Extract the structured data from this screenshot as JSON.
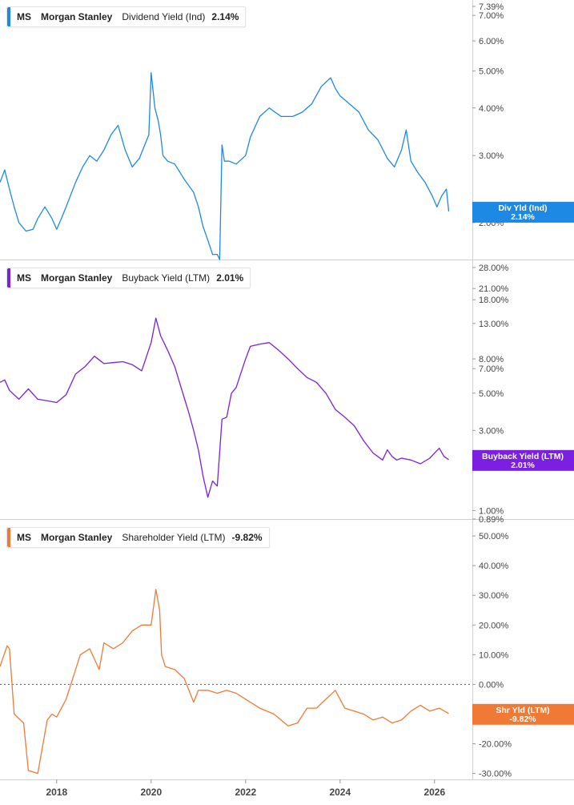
{
  "x_axis": {
    "ticks": [
      "2018",
      "2020",
      "2022",
      "2024",
      "2026"
    ]
  },
  "panels": [
    {
      "id": "div",
      "color": "#1e88e5",
      "legend": {
        "ticker": "MS",
        "company": "Morgan Stanley",
        "metric": "Dividend Yield (Ind)",
        "value": "2.14%"
      },
      "tag": {
        "label": "Div Yld (Ind)",
        "value": "2.14%"
      },
      "scale": "log",
      "y_ticks": [
        "7.39%",
        "7.00%",
        "6.00%",
        "5.00%",
        "4.00%",
        "3.00%",
        "2.00%"
      ]
    },
    {
      "id": "buy",
      "color": "#7b1fe0",
      "legend": {
        "ticker": "MS",
        "company": "Morgan Stanley",
        "metric": "Buyback Yield (LTM)",
        "value": "2.01%"
      },
      "tag": {
        "label": "Buyback Yield (LTM)",
        "value": "2.01%"
      },
      "scale": "log",
      "y_ticks": [
        "28.00%",
        "21.00%",
        "18.00%",
        "13.00%",
        "8.00%",
        "7.00%",
        "5.00%",
        "3.00%",
        "1.00%",
        "0.89%"
      ]
    },
    {
      "id": "shr",
      "color": "#f07a35",
      "legend": {
        "ticker": "MS",
        "company": "Morgan Stanley",
        "metric": "Shareholder Yield (LTM)",
        "value": "-9.82%"
      },
      "tag": {
        "label": "Shr Yld (LTM)",
        "value": "-9.82%"
      },
      "scale": "linear",
      "y_ticks": [
        "50.00%",
        "40.00%",
        "30.00%",
        "20.00%",
        "10.00%",
        "0.00%",
        "-10.00%",
        "-20.00%",
        "-30.00%"
      ],
      "zero_line": true
    }
  ],
  "chart_data": [
    {
      "type": "line",
      "series": [
        {
          "name": "Dividend Yield (Ind)",
          "x": [
            2016.8,
            2016.9,
            2017.0,
            2017.1,
            2017.2,
            2017.35,
            2017.5,
            2017.6,
            2017.75,
            2017.9,
            2018.0,
            2018.1,
            2018.2,
            2018.4,
            2018.55,
            2018.7,
            2018.85,
            2019.0,
            2019.15,
            2019.3,
            2019.45,
            2019.6,
            2019.75,
            2019.95,
            2020.0,
            2020.08,
            2020.15,
            2020.2,
            2020.25,
            2020.35,
            2020.5,
            2020.7,
            2020.9,
            2021.0,
            2021.1,
            2021.2,
            2021.3,
            2021.4,
            2021.45,
            2021.5,
            2021.55,
            2021.65,
            2021.8,
            2022.0,
            2022.1,
            2022.3,
            2022.5,
            2022.75,
            2023.0,
            2023.2,
            2023.4,
            2023.6,
            2023.8,
            2023.9,
            2024.0,
            2024.2,
            2024.4,
            2024.6,
            2024.8,
            2025.0,
            2025.15,
            2025.3,
            2025.4,
            2025.5,
            2025.65,
            2025.8,
            2025.95,
            2026.05,
            2026.15,
            2026.25,
            2026.3
          ],
          "values": [
            2.55,
            2.75,
            2.45,
            2.2,
            2.0,
            1.9,
            1.92,
            2.05,
            2.2,
            2.05,
            1.92,
            2.05,
            2.2,
            2.55,
            2.8,
            3.0,
            2.9,
            3.1,
            3.4,
            3.6,
            3.1,
            2.8,
            2.95,
            3.4,
            4.95,
            4.0,
            3.7,
            3.4,
            3.0,
            2.9,
            2.85,
            2.6,
            2.4,
            2.2,
            1.95,
            1.8,
            1.65,
            1.65,
            1.6,
            3.2,
            2.9,
            2.9,
            2.85,
            3.0,
            3.35,
            3.8,
            4.0,
            3.8,
            3.8,
            3.9,
            4.1,
            4.55,
            4.8,
            4.5,
            4.3,
            4.1,
            3.9,
            3.5,
            3.3,
            2.95,
            2.8,
            3.1,
            3.5,
            2.9,
            2.7,
            2.55,
            2.35,
            2.2,
            2.35,
            2.45,
            2.14
          ]
        }
      ],
      "y_scale": "log",
      "ylim": [
        1.6,
        7.39
      ]
    },
    {
      "type": "line",
      "series": [
        {
          "name": "Buyback Yield (LTM)",
          "x": [
            2016.8,
            2016.9,
            2017.0,
            2017.2,
            2017.4,
            2017.6,
            2017.8,
            2018.0,
            2018.2,
            2018.4,
            2018.6,
            2018.8,
            2019.0,
            2019.2,
            2019.4,
            2019.6,
            2019.8,
            2020.0,
            2020.1,
            2020.2,
            2020.35,
            2020.5,
            2020.6,
            2020.7,
            2020.8,
            2020.9,
            2021.0,
            2021.1,
            2021.2,
            2021.3,
            2021.4,
            2021.5,
            2021.6,
            2021.7,
            2021.8,
            2022.0,
            2022.1,
            2022.3,
            2022.5,
            2022.7,
            2022.9,
            2023.1,
            2023.3,
            2023.5,
            2023.7,
            2023.9,
            2024.1,
            2024.3,
            2024.5,
            2024.7,
            2024.9,
            2025.0,
            2025.1,
            2025.2,
            2025.3,
            2025.5,
            2025.7,
            2025.9,
            2026.0,
            2026.1,
            2026.2,
            2026.3
          ],
          "values": [
            5.8,
            6.0,
            5.2,
            4.6,
            5.3,
            4.6,
            4.5,
            4.4,
            4.9,
            6.5,
            7.2,
            8.3,
            7.5,
            7.6,
            7.7,
            7.4,
            6.8,
            10.0,
            14.0,
            11.0,
            9.0,
            7.2,
            5.8,
            4.7,
            3.8,
            3.0,
            2.3,
            1.6,
            1.2,
            1.5,
            1.4,
            3.5,
            3.6,
            5.0,
            5.4,
            8.0,
            9.5,
            9.8,
            10.0,
            9.0,
            8.0,
            7.0,
            6.2,
            5.8,
            5.0,
            4.0,
            3.6,
            3.2,
            2.6,
            2.2,
            2.0,
            2.3,
            2.1,
            2.0,
            2.05,
            2.0,
            1.9,
            2.05,
            2.2,
            2.35,
            2.1,
            2.01
          ]
        }
      ],
      "y_scale": "log",
      "ylim": [
        0.89,
        28.0
      ]
    },
    {
      "type": "line",
      "series": [
        {
          "name": "Shareholder Yield (LTM)",
          "x": [
            2016.8,
            2016.95,
            2017.0,
            2017.1,
            2017.3,
            2017.4,
            2017.6,
            2017.8,
            2017.9,
            2018.0,
            2018.2,
            2018.4,
            2018.5,
            2018.7,
            2018.9,
            2019.0,
            2019.2,
            2019.4,
            2019.6,
            2019.8,
            2020.0,
            2020.1,
            2020.18,
            2020.22,
            2020.3,
            2020.5,
            2020.7,
            2020.9,
            2021.0,
            2021.2,
            2021.4,
            2021.6,
            2021.8,
            2022.0,
            2022.3,
            2022.6,
            2022.9,
            2023.1,
            2023.3,
            2023.5,
            2023.7,
            2023.9,
            2024.1,
            2024.3,
            2024.5,
            2024.7,
            2024.9,
            2025.1,
            2025.3,
            2025.5,
            2025.7,
            2025.9,
            2026.1,
            2026.3
          ],
          "values": [
            6,
            13,
            12,
            -10,
            -13,
            -29,
            -30,
            -12,
            -10,
            -11,
            -5,
            5,
            10,
            12,
            5,
            14,
            12,
            14,
            18,
            20,
            20,
            32,
            25,
            10,
            6,
            5,
            2,
            -6,
            -2,
            -2,
            -3,
            -2,
            -3,
            -5,
            -8,
            -10,
            -14,
            -13,
            -8,
            -8,
            -5,
            -2,
            -8,
            -9,
            -10,
            -12,
            -11,
            -13,
            -12,
            -9,
            -7,
            -9,
            -8,
            -9.82
          ]
        }
      ],
      "y_scale": "linear",
      "ylim": [
        -32,
        53
      ]
    }
  ]
}
